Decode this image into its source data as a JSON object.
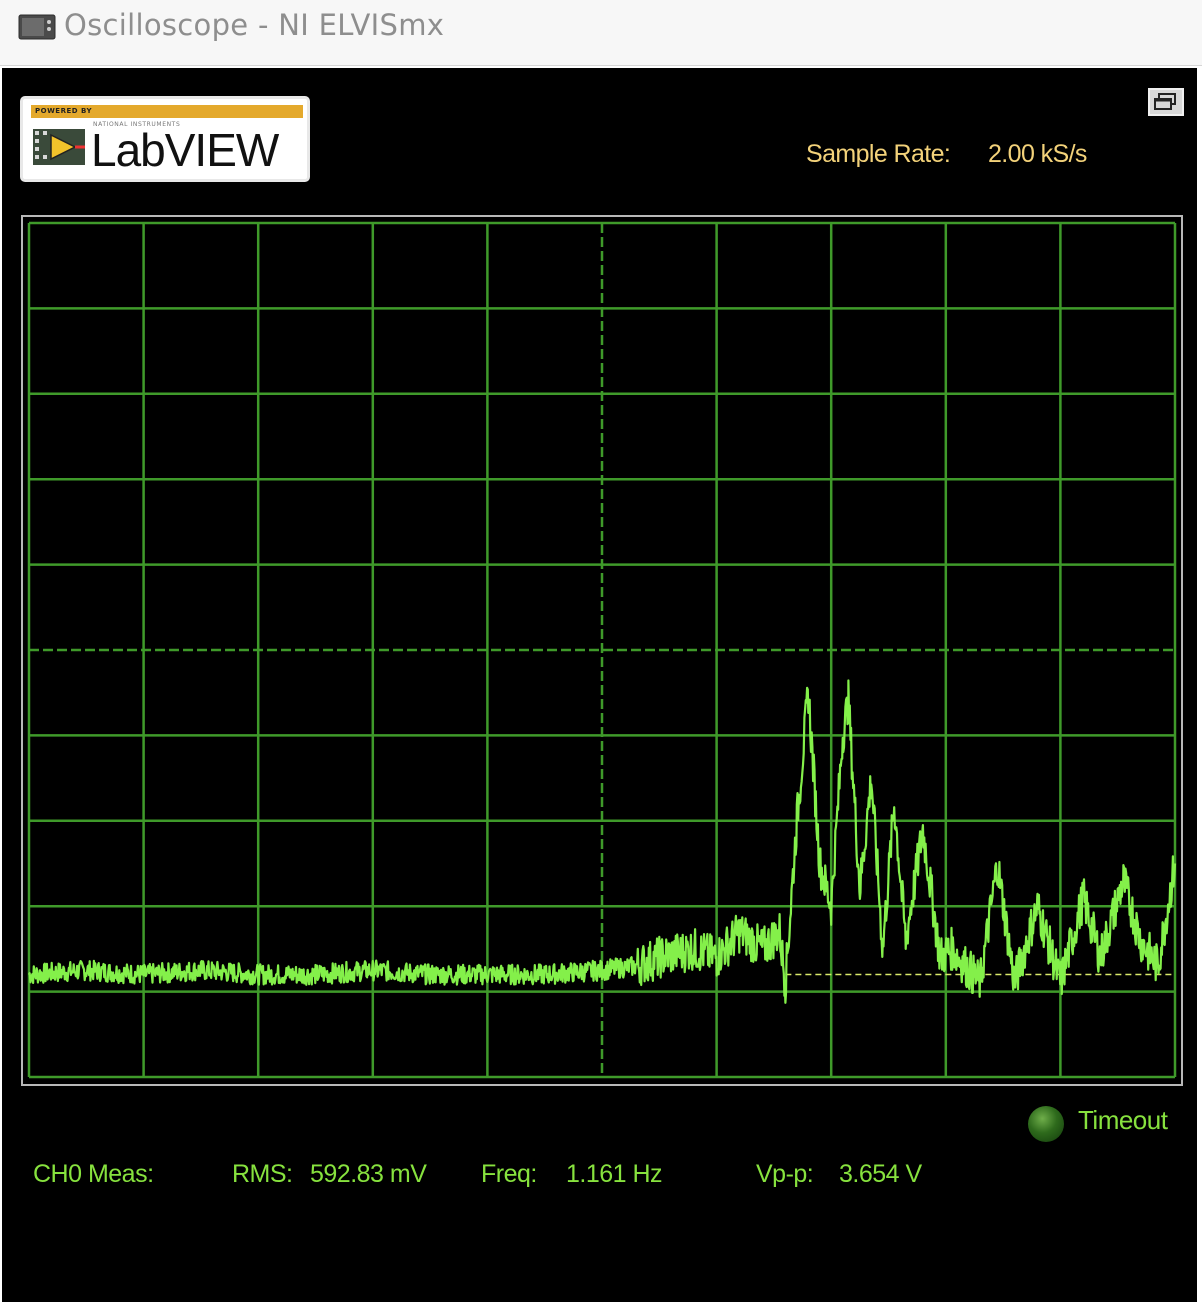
{
  "window": {
    "title": "Oscilloscope - NI ELVISmx"
  },
  "logo": {
    "powered_by": "POWERED BY",
    "vendor": "NATIONAL INSTRUMENTS",
    "product": "LabVIEW"
  },
  "sample_rate": {
    "label": "Sample Rate:",
    "value": "2.00 kS/s"
  },
  "indicator": {
    "label": "Timeout",
    "state": "off"
  },
  "measurements": {
    "channel_label": "CH0 Meas:",
    "rms_label": "RMS:",
    "rms_value": "592.83 mV",
    "freq_label": "Freq:",
    "freq_value": "1.161 Hz",
    "vpp_label": "Vp-p:",
    "vpp_value": "3.654 V"
  },
  "colors": {
    "background": "#000000",
    "grid": "#3f9a2a",
    "trace": "#84f04a",
    "label_green": "#87e23e",
    "label_yellow": "#f3d27a"
  },
  "chart_data": {
    "type": "line",
    "grid": {
      "vertical_divisions": 10,
      "horizontal_divisions": 10
    },
    "xlim": [
      0,
      10
    ],
    "ylim": [
      -5,
      5
    ],
    "series": [
      {
        "values": [
          [
            0.0,
            -3.8
          ],
          [
            0.5,
            -3.75
          ],
          [
            1.0,
            -3.8
          ],
          [
            1.5,
            -3.75
          ],
          [
            2.0,
            -3.8
          ],
          [
            2.5,
            -3.8
          ],
          [
            3.0,
            -3.75
          ],
          [
            3.5,
            -3.8
          ],
          [
            4.0,
            -3.8
          ],
          [
            4.5,
            -3.8
          ],
          [
            5.0,
            -3.75
          ],
          [
            5.3,
            -3.7
          ],
          [
            5.5,
            -3.6
          ],
          [
            5.8,
            -3.5
          ],
          [
            6.0,
            -3.6
          ],
          [
            6.2,
            -3.3
          ],
          [
            6.4,
            -3.5
          ],
          [
            6.55,
            -3.3
          ],
          [
            6.6,
            -3.9
          ],
          [
            6.7,
            -2.0
          ],
          [
            6.8,
            -0.5
          ],
          [
            6.9,
            -2.5
          ],
          [
            7.0,
            -3.0
          ],
          [
            7.1,
            -1.0
          ],
          [
            7.15,
            -0.6
          ],
          [
            7.25,
            -2.8
          ],
          [
            7.35,
            -1.5
          ],
          [
            7.45,
            -3.5
          ],
          [
            7.55,
            -1.8
          ],
          [
            7.65,
            -3.4
          ],
          [
            7.8,
            -2.1
          ],
          [
            7.95,
            -3.6
          ],
          [
            8.05,
            -3.5
          ],
          [
            8.3,
            -3.9
          ],
          [
            8.45,
            -2.5
          ],
          [
            8.6,
            -3.9
          ],
          [
            8.8,
            -3.0
          ],
          [
            9.0,
            -3.9
          ],
          [
            9.2,
            -2.9
          ],
          [
            9.35,
            -3.6
          ],
          [
            9.55,
            -2.7
          ],
          [
            9.7,
            -3.4
          ],
          [
            9.85,
            -3.7
          ],
          [
            10.0,
            -2.5
          ]
        ]
      }
    ]
  }
}
